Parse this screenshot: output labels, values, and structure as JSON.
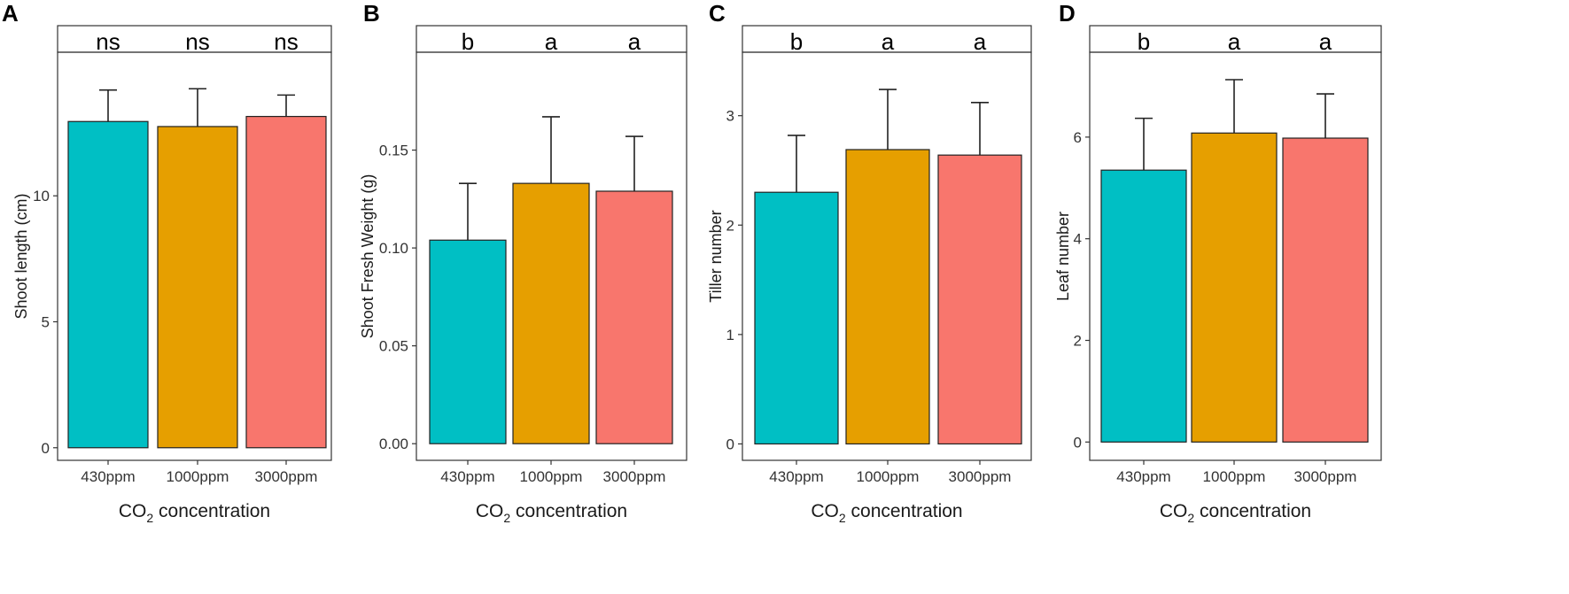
{
  "chart_data": [
    {
      "panel": "A",
      "type": "bar",
      "categories": [
        "430ppm",
        "1000ppm",
        "3000ppm"
      ],
      "values": [
        12.95,
        12.75,
        13.15
      ],
      "errors": [
        1.25,
        1.5,
        0.85
      ],
      "significance": [
        "ns",
        "ns",
        "ns"
      ],
      "colors": [
        "#00BFC4",
        "#E69F00",
        "#F8766D"
      ],
      "ylabel": "Shoot length (cm)",
      "xlabel_prefix": "CO",
      "xlabel_sub": "2",
      "xlabel_suffix": " concentration",
      "yticks": [
        0,
        5,
        10
      ],
      "ytick_labels": [
        "0",
        "5",
        "10"
      ],
      "ylim": [
        -0.5,
        15.7
      ]
    },
    {
      "panel": "B",
      "type": "bar",
      "categories": [
        "430ppm",
        "1000ppm",
        "3000ppm"
      ],
      "values": [
        0.104,
        0.133,
        0.129
      ],
      "errors": [
        0.029,
        0.034,
        0.028
      ],
      "significance": [
        "b",
        "a",
        "a"
      ],
      "colors": [
        "#00BFC4",
        "#E69F00",
        "#F8766D"
      ],
      "ylabel": "Shoot Fresh Weight (g)",
      "xlabel_prefix": "CO",
      "xlabel_sub": "2",
      "xlabel_suffix": " concentration",
      "yticks": [
        0,
        0.05,
        0.1,
        0.15
      ],
      "ytick_labels": [
        "0.00",
        "0.05",
        "0.10",
        "0.15"
      ],
      "ylim": [
        -0.0085,
        0.2
      ]
    },
    {
      "panel": "C",
      "type": "bar",
      "categories": [
        "430ppm",
        "1000ppm",
        "3000ppm"
      ],
      "values": [
        2.3,
        2.69,
        2.64
      ],
      "errors": [
        0.52,
        0.55,
        0.48
      ],
      "significance": [
        "b",
        "a",
        "a"
      ],
      "colors": [
        "#00BFC4",
        "#E69F00",
        "#F8766D"
      ],
      "ylabel": "Tiller number",
      "xlabel_prefix": "CO",
      "xlabel_sub": "2",
      "xlabel_suffix": " concentration",
      "yticks": [
        0,
        1,
        2,
        3
      ],
      "ytick_labels": [
        "0",
        "1",
        "2",
        "3"
      ],
      "ylim": [
        -0.15,
        3.58
      ]
    },
    {
      "panel": "D",
      "type": "bar",
      "categories": [
        "430ppm",
        "1000ppm",
        "3000ppm"
      ],
      "values": [
        5.35,
        6.08,
        5.98
      ],
      "errors": [
        1.02,
        1.05,
        0.87
      ],
      "significance": [
        "b",
        "a",
        "a"
      ],
      "colors": [
        "#00BFC4",
        "#E69F00",
        "#F8766D"
      ],
      "ylabel": "Leaf number",
      "xlabel_prefix": "CO",
      "xlabel_sub": "2",
      "xlabel_suffix": " concentration",
      "yticks": [
        0,
        2,
        4,
        6
      ],
      "ytick_labels": [
        "0",
        "2",
        "4",
        "6"
      ],
      "ylim": [
        -0.36,
        7.67
      ]
    }
  ]
}
